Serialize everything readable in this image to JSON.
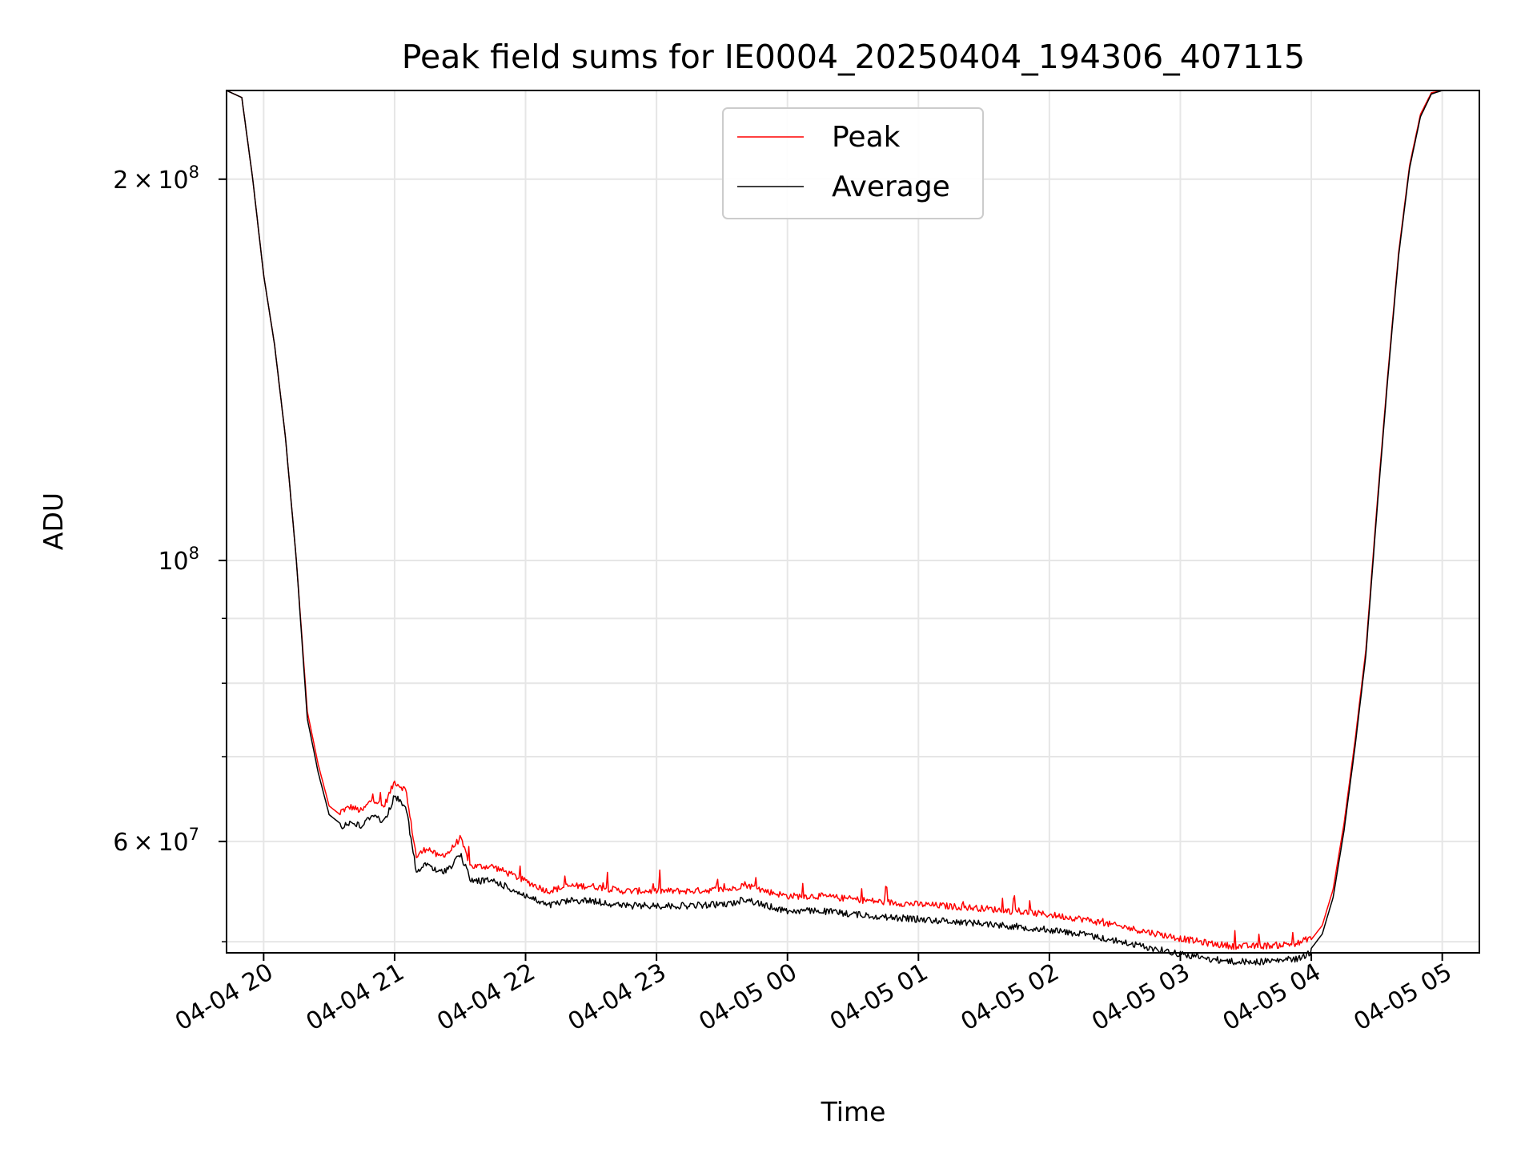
{
  "chart_data": {
    "type": "line",
    "title": "Peak field sums for IE0004_20250404_194306_407115",
    "xlabel": "Time",
    "ylabel": "ADU",
    "yscale": "log",
    "grid": true,
    "legend_position": "top-center",
    "x_ticks": [
      "04-04 20",
      "04-04 21",
      "04-04 22",
      "04-04 23",
      "04-05 00",
      "04-05 01",
      "04-05 02",
      "04-05 03",
      "04-05 04",
      "04-05 05"
    ],
    "y_ticks": [
      {
        "value": 200000000,
        "mantissa": "2",
        "exponent": "8"
      },
      {
        "value": 100000000,
        "mantissa": "",
        "exponent": "8"
      },
      {
        "value": 60000000,
        "mantissa": "6",
        "exponent": "7"
      }
    ],
    "xlim": [
      "2025-04-04 19:43",
      "2025-04-05 05:17"
    ],
    "ylim": [
      49000000,
      235000000
    ],
    "series": [
      {
        "name": "Peak",
        "color": "#ff0000",
        "noise": "spiky",
        "x": [
          "2025-04-04 19:43",
          "2025-04-04 19:50",
          "2025-04-04 19:55",
          "2025-04-04 20:00",
          "2025-04-04 20:05",
          "2025-04-04 20:10",
          "2025-04-04 20:15",
          "2025-04-04 20:20",
          "2025-04-04 20:25",
          "2025-04-04 20:30",
          "2025-04-04 20:35",
          "2025-04-04 20:40",
          "2025-04-04 20:45",
          "2025-04-04 20:50",
          "2025-04-04 20:55",
          "2025-04-04 21:00",
          "2025-04-04 21:05",
          "2025-04-04 21:10",
          "2025-04-04 21:15",
          "2025-04-04 21:20",
          "2025-04-04 21:25",
          "2025-04-04 21:30",
          "2025-04-04 21:35",
          "2025-04-04 21:40",
          "2025-04-04 21:45",
          "2025-04-04 21:50",
          "2025-04-04 22:00",
          "2025-04-04 22:10",
          "2025-04-04 22:20",
          "2025-04-04 22:30",
          "2025-04-04 22:45",
          "2025-04-04 23:00",
          "2025-04-04 23:15",
          "2025-04-04 23:25",
          "2025-04-04 23:35",
          "2025-04-04 23:40",
          "2025-04-04 23:50",
          "2025-04-05 00:00",
          "2025-04-05 00:15",
          "2025-04-05 00:30",
          "2025-04-05 00:45",
          "2025-04-05 01:00",
          "2025-04-05 01:15",
          "2025-04-05 01:30",
          "2025-04-05 01:45",
          "2025-04-05 02:00",
          "2025-04-05 02:15",
          "2025-04-05 02:30",
          "2025-04-05 02:45",
          "2025-04-05 03:00",
          "2025-04-05 03:15",
          "2025-04-05 03:25",
          "2025-04-05 03:35",
          "2025-04-05 03:45",
          "2025-04-05 03:55",
          "2025-04-05 04:00",
          "2025-04-05 04:05",
          "2025-04-05 04:10",
          "2025-04-05 04:15",
          "2025-04-05 04:20",
          "2025-04-05 04:25",
          "2025-04-05 04:30",
          "2025-04-05 04:35",
          "2025-04-05 04:40",
          "2025-04-05 04:45",
          "2025-04-05 04:50",
          "2025-04-05 04:55",
          "2025-04-05 05:00"
        ],
        "y": [
          235000000,
          232000000,
          200000000,
          168000000,
          148000000,
          125000000,
          100000000,
          76000000,
          69000000,
          64000000,
          63000000,
          63500000,
          63000000,
          64500000,
          63500000,
          66500000,
          65500000,
          58000000,
          59000000,
          58000000,
          58500000,
          60000000,
          57000000,
          57000000,
          57000000,
          56500000,
          55500000,
          54500000,
          55000000,
          55000000,
          54500000,
          54500000,
          54500000,
          54600000,
          54700000,
          55200000,
          54500000,
          54000000,
          54000000,
          53700000,
          53400000,
          53200000,
          53000000,
          52800000,
          52500000,
          52200000,
          51800000,
          51200000,
          50600000,
          50000000,
          49500000,
          49300000,
          49300000,
          49400000,
          49600000,
          50200000,
          51500000,
          55000000,
          62000000,
          72000000,
          85000000,
          110000000,
          140000000,
          175000000,
          205000000,
          225000000,
          234000000,
          235000000
        ]
      },
      {
        "name": "Average",
        "color": "#000000",
        "noise": "dips",
        "x": [
          "2025-04-04 19:43",
          "2025-04-04 19:50",
          "2025-04-04 19:55",
          "2025-04-04 20:00",
          "2025-04-04 20:05",
          "2025-04-04 20:10",
          "2025-04-04 20:15",
          "2025-04-04 20:20",
          "2025-04-04 20:25",
          "2025-04-04 20:30",
          "2025-04-04 20:35",
          "2025-04-04 20:40",
          "2025-04-04 20:45",
          "2025-04-04 20:50",
          "2025-04-04 20:55",
          "2025-04-04 21:00",
          "2025-04-04 21:05",
          "2025-04-04 21:10",
          "2025-04-04 21:15",
          "2025-04-04 21:20",
          "2025-04-04 21:25",
          "2025-04-04 21:30",
          "2025-04-04 21:35",
          "2025-04-04 21:40",
          "2025-04-04 21:45",
          "2025-04-04 21:50",
          "2025-04-04 22:00",
          "2025-04-04 22:10",
          "2025-04-04 22:20",
          "2025-04-04 22:30",
          "2025-04-04 22:45",
          "2025-04-04 23:00",
          "2025-04-04 23:15",
          "2025-04-04 23:25",
          "2025-04-04 23:35",
          "2025-04-04 23:40",
          "2025-04-04 23:50",
          "2025-04-05 00:00",
          "2025-04-05 00:15",
          "2025-04-05 00:30",
          "2025-04-05 00:45",
          "2025-04-05 01:00",
          "2025-04-05 01:15",
          "2025-04-05 01:30",
          "2025-04-05 01:45",
          "2025-04-05 02:00",
          "2025-04-05 02:15",
          "2025-04-05 02:30",
          "2025-04-05 02:45",
          "2025-04-05 03:00",
          "2025-04-05 03:15",
          "2025-04-05 03:25",
          "2025-04-05 03:35",
          "2025-04-05 03:45",
          "2025-04-05 03:55",
          "2025-04-05 04:00",
          "2025-04-05 04:05",
          "2025-04-05 04:10",
          "2025-04-05 04:15",
          "2025-04-05 04:20",
          "2025-04-05 04:25",
          "2025-04-05 04:30",
          "2025-04-05 04:35",
          "2025-04-05 04:40",
          "2025-04-05 04:45",
          "2025-04-05 04:50",
          "2025-04-05 04:55",
          "2025-04-05 05:00"
        ],
        "y": [
          235000000,
          232000000,
          200000000,
          168000000,
          148000000,
          125000000,
          100000000,
          75000000,
          68000000,
          63000000,
          62000000,
          62500000,
          62000000,
          63500000,
          62500000,
          65500000,
          64500000,
          57000000,
          58000000,
          57000000,
          57500000,
          59000000,
          56200000,
          56200000,
          56200000,
          55700000,
          54700000,
          53700000,
          54200000,
          54200000,
          53700000,
          53700000,
          53700000,
          53800000,
          53900000,
          54400000,
          53700000,
          53200000,
          53200000,
          52900000,
          52600000,
          52400000,
          52200000,
          52000000,
          51700000,
          51400000,
          51000000,
          50400000,
          49800000,
          49200000,
          48700000,
          48500000,
          48500000,
          48600000,
          48800000,
          49400000,
          50700000,
          54200000,
          61200000,
          71200000,
          84200000,
          109000000,
          139000000,
          174000000,
          204000000,
          224000000,
          233500000,
          235000000
        ]
      }
    ]
  }
}
